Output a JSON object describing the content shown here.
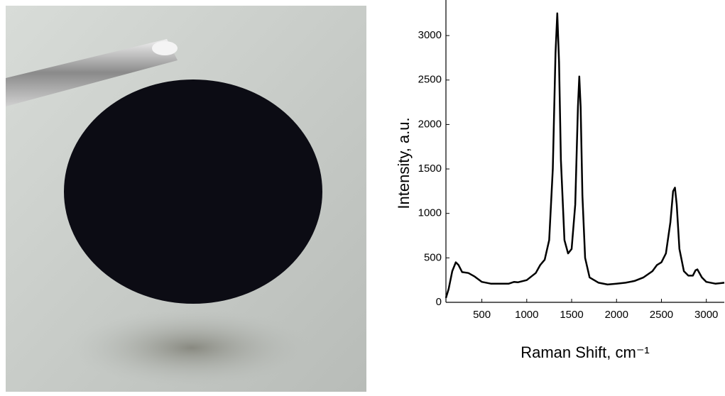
{
  "chart_data": {
    "type": "line",
    "x_label": "Raman Shift, cm⁻¹",
    "y_label": "Intensity, a.u.",
    "x": [
      100,
      130,
      170,
      210,
      240,
      280,
      350,
      420,
      500,
      600,
      800,
      860,
      900,
      1000,
      1100,
      1150,
      1200,
      1250,
      1290,
      1320,
      1340,
      1360,
      1380,
      1420,
      1460,
      1500,
      1540,
      1570,
      1585,
      1600,
      1620,
      1650,
      1700,
      1800,
      1900,
      2000,
      2100,
      2200,
      2300,
      2400,
      2450,
      2500,
      2550,
      2600,
      2630,
      2650,
      2670,
      2700,
      2750,
      2800,
      2850,
      2880,
      2900,
      2950,
      3000,
      3100,
      3200
    ],
    "values": [
      50,
      150,
      350,
      450,
      420,
      340,
      330,
      290,
      230,
      210,
      210,
      230,
      225,
      250,
      330,
      420,
      480,
      700,
      1500,
      2800,
      3250,
      2700,
      1600,
      700,
      550,
      600,
      1100,
      2200,
      2540,
      2200,
      1200,
      500,
      280,
      220,
      200,
      210,
      220,
      240,
      280,
      350,
      420,
      450,
      550,
      900,
      1250,
      1290,
      1100,
      600,
      350,
      300,
      300,
      360,
      370,
      280,
      230,
      210,
      220
    ],
    "color": "#000000",
    "xlim": [
      100,
      3200
    ],
    "xticks": [
      500,
      1000,
      1500,
      2000,
      2500,
      3000
    ],
    "ylim": [
      0,
      3400
    ],
    "yticks": [
      0,
      500,
      1000,
      1500,
      2000,
      2500,
      3000
    ]
  }
}
